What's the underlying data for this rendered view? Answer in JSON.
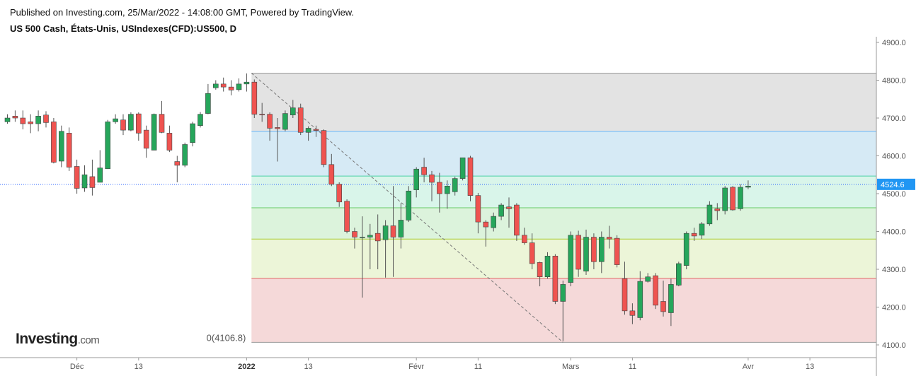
{
  "header": {
    "published": "Published on Investing.com, 25/Mar/2022 - 14:08:00 GMT, Powered by TradingView.",
    "symbol": "US 500 Cash, États-Unis, USIndexes(CFD):US500, D"
  },
  "logo": {
    "brand": "Investing",
    "suffix": ".com"
  },
  "colors": {
    "up": "#26a65b",
    "down": "#ef5350",
    "wick": "#555555",
    "price_line": "#2962ff",
    "price_tag": "#2196f3",
    "axis": "#999999"
  },
  "chart_data": {
    "type": "candlestick",
    "title": "US 500 Cash, États-Unis, USIndexes(CFD):US500, D",
    "ylim": [
      4080,
      4920
    ],
    "y_ticks": [
      4100,
      4200,
      4300,
      4400,
      4500,
      4600,
      4700,
      4800,
      4900
    ],
    "y_tick_labels": [
      "4100.0",
      "4200.0",
      "4300.0",
      "4400.0",
      "4500.0",
      "4600.0",
      "4700.0",
      "4800.0",
      "4900.0"
    ],
    "x_ticks": [
      {
        "label": "Déc",
        "index": 9,
        "bold": false
      },
      {
        "label": "13",
        "index": 17,
        "bold": false
      },
      {
        "label": "2022",
        "index": 31,
        "bold": true
      },
      {
        "label": "13",
        "index": 39,
        "bold": false
      },
      {
        "label": "Févr",
        "index": 53,
        "bold": false
      },
      {
        "label": "11",
        "index": 61,
        "bold": false
      },
      {
        "label": "Mars",
        "index": 73,
        "bold": false
      },
      {
        "label": "11",
        "index": 81,
        "bold": false
      },
      {
        "label": "Avr",
        "index": 96,
        "bold": false
      },
      {
        "label": "13",
        "index": 104,
        "bold": false
      }
    ],
    "last_price": 4524.6,
    "last_price_label": "4524.6",
    "candles": [
      [
        4690,
        4700,
        4710,
        4685
      ],
      [
        4705,
        4700,
        4720,
        4690
      ],
      [
        4700,
        4685,
        4720,
        4670
      ],
      [
        4690,
        4685,
        4710,
        4660
      ],
      [
        4685,
        4705,
        4720,
        4665
      ],
      [
        4708,
        4688,
        4718,
        4675
      ],
      [
        4690,
        4583,
        4700,
        4580
      ],
      [
        4586,
        4665,
        4680,
        4570
      ],
      [
        4660,
        4570,
        4675,
        4560
      ],
      [
        4572,
        4514,
        4590,
        4500
      ],
      [
        4515,
        4550,
        4575,
        4505
      ],
      [
        4545,
        4516,
        4590,
        4495
      ],
      [
        4530,
        4568,
        4615,
        4530
      ],
      [
        4566,
        4690,
        4695,
        4565
      ],
      [
        4690,
        4698,
        4710,
        4685
      ],
      [
        4695,
        4668,
        4710,
        4655
      ],
      [
        4668,
        4710,
        4715,
        4665
      ],
      [
        4711,
        4660,
        4715,
        4640
      ],
      [
        4668,
        4620,
        4680,
        4595
      ],
      [
        4615,
        4710,
        4712,
        4615
      ],
      [
        4710,
        4662,
        4745,
        4660
      ],
      [
        4660,
        4615,
        4680,
        4610
      ],
      [
        4585,
        4575,
        4600,
        4530
      ],
      [
        4575,
        4630,
        4635,
        4570
      ],
      [
        4635,
        4685,
        4690,
        4625
      ],
      [
        4680,
        4710,
        4716,
        4675
      ],
      [
        4712,
        4765,
        4790,
        4710
      ],
      [
        4780,
        4790,
        4800,
        4775
      ],
      [
        4790,
        4782,
        4807,
        4770
      ],
      [
        4782,
        4774,
        4800,
        4760
      ],
      [
        4775,
        4790,
        4805,
        4770
      ],
      [
        4790,
        4795,
        4818,
        4770
      ],
      [
        4795,
        4710,
        4802,
        4700
      ],
      [
        4710,
        4708,
        4740,
        4690
      ],
      [
        4710,
        4673,
        4715,
        4640
      ],
      [
        4675,
        4672,
        4700,
        4585
      ],
      [
        4670,
        4712,
        4720,
        4665
      ],
      [
        4708,
        4727,
        4748,
        4700
      ],
      [
        4727,
        4662,
        4738,
        4655
      ],
      [
        4662,
        4673,
        4678,
        4640
      ],
      [
        4670,
        4667,
        4680,
        4650
      ],
      [
        4667,
        4577,
        4670,
        4570
      ],
      [
        4577,
        4525,
        4605,
        4520
      ],
      [
        4525,
        4478,
        4530,
        4465
      ],
      [
        4480,
        4400,
        4485,
        4395
      ],
      [
        4400,
        4385,
        4410,
        4355
      ],
      [
        4385,
        4385,
        4440,
        4225
      ],
      [
        4385,
        4390,
        4420,
        4300
      ],
      [
        4395,
        4375,
        4445,
        4300
      ],
      [
        4378,
        4415,
        4430,
        4278
      ],
      [
        4415,
        4385,
        4520,
        4280
      ],
      [
        4385,
        4430,
        4475,
        4355
      ],
      [
        4430,
        4507,
        4520,
        4425
      ],
      [
        4510,
        4565,
        4570,
        4490
      ],
      [
        4570,
        4550,
        4595,
        4530
      ],
      [
        4550,
        4530,
        4560,
        4480
      ],
      [
        4530,
        4500,
        4555,
        4450
      ],
      [
        4500,
        4520,
        4535,
        4460
      ],
      [
        4505,
        4540,
        4545,
        4495
      ],
      [
        4540,
        4595,
        4595,
        4535
      ],
      [
        4595,
        4495,
        4600,
        4480
      ],
      [
        4495,
        4425,
        4502,
        4395
      ],
      [
        4425,
        4412,
        4430,
        4360
      ],
      [
        4410,
        4440,
        4450,
        4400
      ],
      [
        4440,
        4470,
        4475,
        4430
      ],
      [
        4465,
        4460,
        4490,
        4410
      ],
      [
        4470,
        4390,
        4475,
        4375
      ],
      [
        4390,
        4370,
        4410,
        4365
      ],
      [
        4370,
        4315,
        4395,
        4300
      ],
      [
        4318,
        4280,
        4320,
        4255
      ],
      [
        4280,
        4335,
        4345,
        4275
      ],
      [
        4335,
        4215,
        4340,
        4208
      ],
      [
        4215,
        4260,
        4270,
        4110
      ],
      [
        4265,
        4390,
        4400,
        4255
      ],
      [
        4390,
        4300,
        4402,
        4280
      ],
      [
        4295,
        4385,
        4405,
        4285
      ],
      [
        4385,
        4320,
        4395,
        4300
      ],
      [
        4320,
        4385,
        4400,
        4290
      ],
      [
        4385,
        4380,
        4415,
        4355
      ],
      [
        4382,
        4312,
        4390,
        4305
      ],
      [
        4275,
        4190,
        4320,
        4180
      ],
      [
        4190,
        4178,
        4210,
        4155
      ],
      [
        4172,
        4268,
        4295,
        4165
      ],
      [
        4268,
        4280,
        4290,
        4265
      ],
      [
        4283,
        4205,
        4290,
        4195
      ],
      [
        4215,
        4188,
        4270,
        4175
      ],
      [
        4185,
        4260,
        4275,
        4150
      ],
      [
        4258,
        4315,
        4320,
        4255
      ],
      [
        4310,
        4395,
        4400,
        4300
      ],
      [
        4395,
        4388,
        4410,
        4375
      ],
      [
        4390,
        4420,
        4425,
        4380
      ],
      [
        4420,
        4470,
        4480,
        4415
      ],
      [
        4460,
        4455,
        4475,
        4430
      ],
      [
        4455,
        4515,
        4520,
        4445
      ],
      [
        4517,
        4457,
        4520,
        4455
      ],
      [
        4460,
        4517,
        4525,
        4455
      ],
      [
        4517,
        4520,
        4535,
        4512
      ]
    ],
    "fibonacci": {
      "start_index": 32,
      "high": 4818.6,
      "low": 4106.8,
      "levels": [
        {
          "price": 4818.6,
          "line": "#999999",
          "fill": null
        },
        {
          "price": 4664.8,
          "line": "#64b5f6",
          "fill": "#e3e3e3"
        },
        {
          "price": 4546.5,
          "line": "#4dd0a8",
          "fill": "#d6eaf5"
        },
        {
          "price": 4462.7,
          "line": "#66cc66",
          "fill": "#d9f5ea"
        },
        {
          "price": 4380.0,
          "line": "#aacc33",
          "fill": "#dcf3dc"
        },
        {
          "price": 4276.0,
          "line": "#e06666",
          "fill": "#ecf5d8"
        },
        {
          "price": 4106.8,
          "line": "#999999",
          "fill": "#f5d9d9"
        }
      ],
      "low_label": "0(4106.8)"
    }
  }
}
